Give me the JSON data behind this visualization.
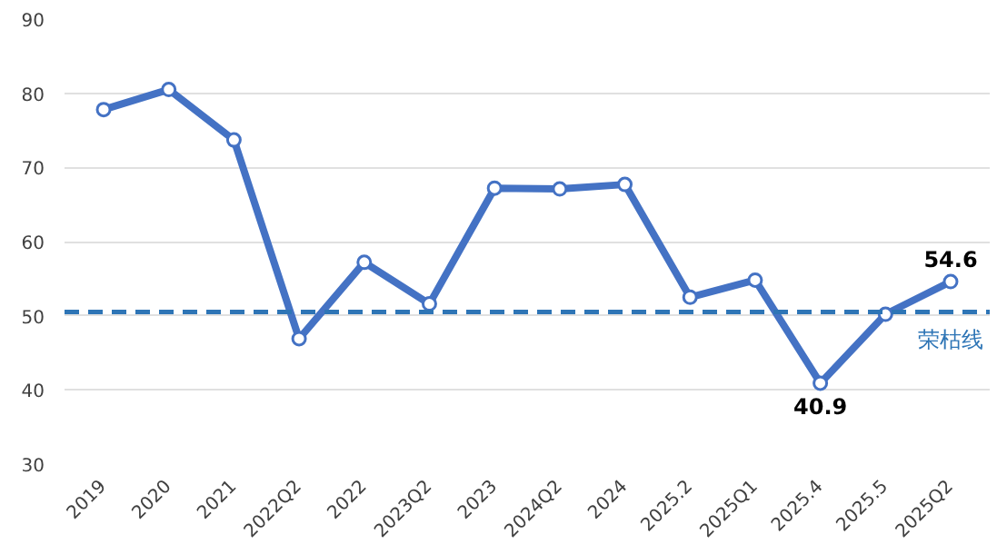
{
  "chart_data": {
    "type": "line",
    "categories": [
      "2019",
      "2020",
      "2021",
      "2022Q2",
      "2022",
      "2023Q2",
      "2023",
      "2024Q2",
      "2024",
      "2025.2",
      "2025Q1",
      "2025.4",
      "2025.5",
      "2025Q2"
    ],
    "series": [
      {
        "color": "#4472c4",
        "values": [
          77.8,
          80.5,
          73.7,
          46.9,
          57.2,
          51.6,
          67.2,
          67.1,
          67.7,
          52.5,
          54.8,
          40.9,
          50.2,
          54.6
        ],
        "value_labels": [
          null,
          null,
          null,
          null,
          null,
          null,
          null,
          null,
          null,
          null,
          null,
          "40.9",
          null,
          "54.6"
        ]
      }
    ],
    "ylim": [
      30,
      90
    ],
    "yticks": [
      30,
      40,
      50,
      60,
      70,
      80,
      90
    ],
    "grid": "y",
    "marker": "circle",
    "line_style": "solid",
    "ref_lines": [
      {
        "axis": "y",
        "value": 50.5,
        "label": "荣枯线",
        "color": "#2e75b6",
        "line_style": "dashed"
      }
    ]
  }
}
